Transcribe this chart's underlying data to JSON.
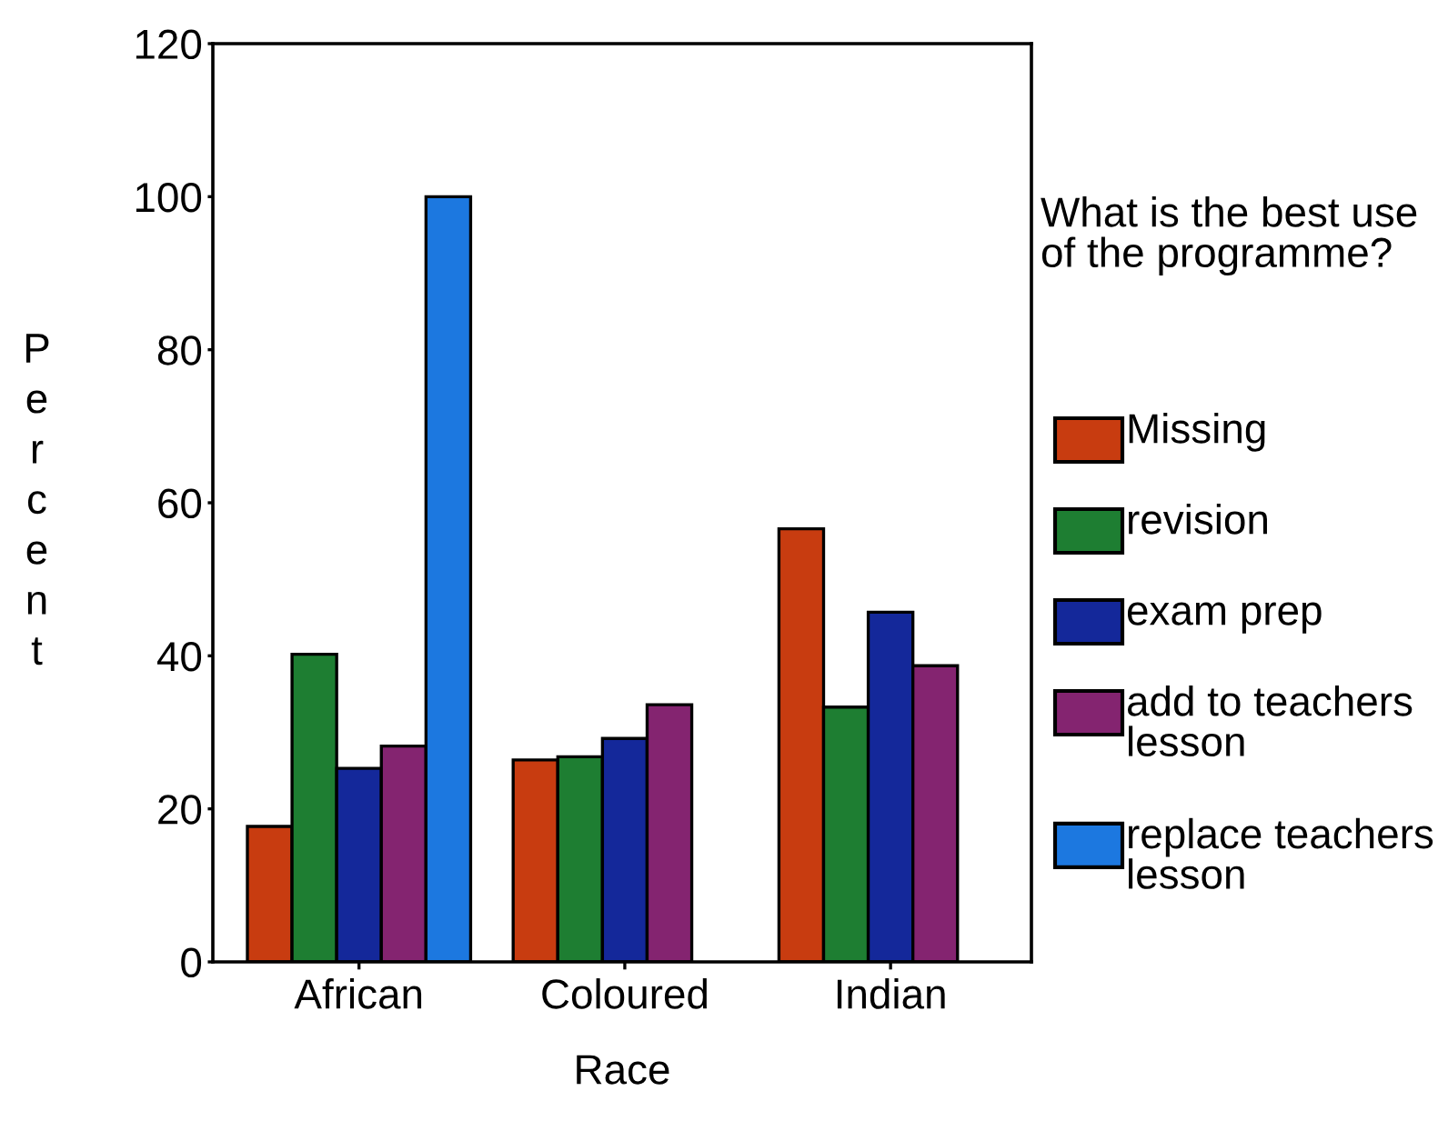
{
  "chart_data": {
    "type": "bar",
    "xlabel": "Race",
    "ylabel": "Percent",
    "legend_title": "What is the best use of the programme?",
    "categories": [
      "African",
      "Coloured",
      "Indian"
    ],
    "series": [
      {
        "name": "Missing",
        "color": "#c83c10",
        "values": [
          17.7,
          26.4,
          56.6
        ]
      },
      {
        "name": "revision",
        "color": "#1e7e32",
        "values": [
          40.2,
          26.8,
          33.3
        ]
      },
      {
        "name": "exam prep",
        "color": "#14289a",
        "values": [
          25.3,
          29.2,
          45.7
        ]
      },
      {
        "name": "add to teachers lesson",
        "color": "#842470",
        "values": [
          28.2,
          33.6,
          38.7
        ]
      },
      {
        "name": "replace teachers lesson",
        "color": "#1c78e0",
        "values": [
          100.0,
          null,
          null
        ]
      }
    ],
    "ylim": [
      0,
      120
    ],
    "yticks": [
      0,
      20,
      40,
      60,
      80,
      100,
      120
    ],
    "grid": false,
    "legend": "right"
  }
}
